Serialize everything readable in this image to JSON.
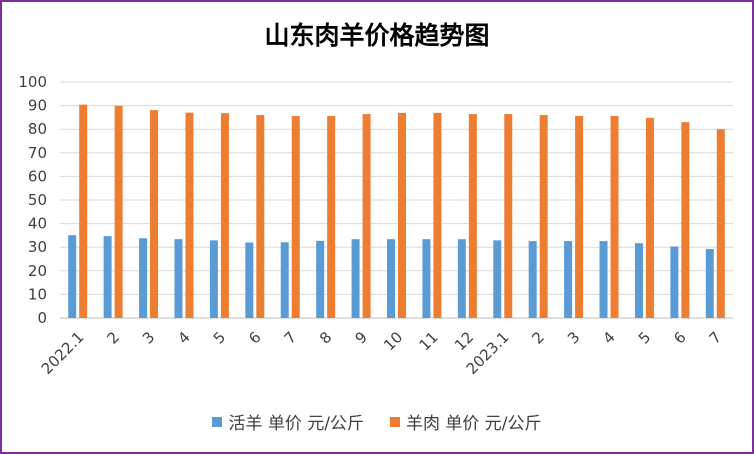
{
  "chart_data": {
    "type": "bar",
    "title": "山东肉羊价格趋势图",
    "xlabel": "",
    "ylabel": "",
    "ylim": [
      0,
      100
    ],
    "yticks": [
      0,
      10,
      20,
      30,
      40,
      50,
      60,
      70,
      80,
      90,
      100
    ],
    "grid": true,
    "legend_position": "bottom",
    "categories": [
      "2022.1",
      "2",
      "3",
      "4",
      "5",
      "6",
      "7",
      "8",
      "9",
      "10",
      "11",
      "12",
      "2023.1",
      "2",
      "3",
      "4",
      "5",
      "6",
      "7"
    ],
    "series": [
      {
        "name": "活羊 单价 元/公斤",
        "color": "#5b9bd5",
        "values": [
          35.1,
          34.7,
          33.8,
          33.4,
          32.9,
          32.0,
          32.1,
          32.7,
          33.4,
          33.4,
          33.4,
          33.4,
          32.9,
          32.6,
          32.6,
          32.6,
          31.7,
          30.3,
          29.2
        ]
      },
      {
        "name": "羊肉 单价 元/公斤",
        "color": "#ed7d31",
        "values": [
          90.4,
          89.9,
          88.1,
          87.0,
          86.8,
          86.0,
          85.6,
          85.6,
          86.4,
          86.9,
          86.9,
          86.4,
          86.4,
          86.0,
          85.6,
          85.6,
          84.8,
          83.0,
          80.0
        ]
      }
    ]
  }
}
